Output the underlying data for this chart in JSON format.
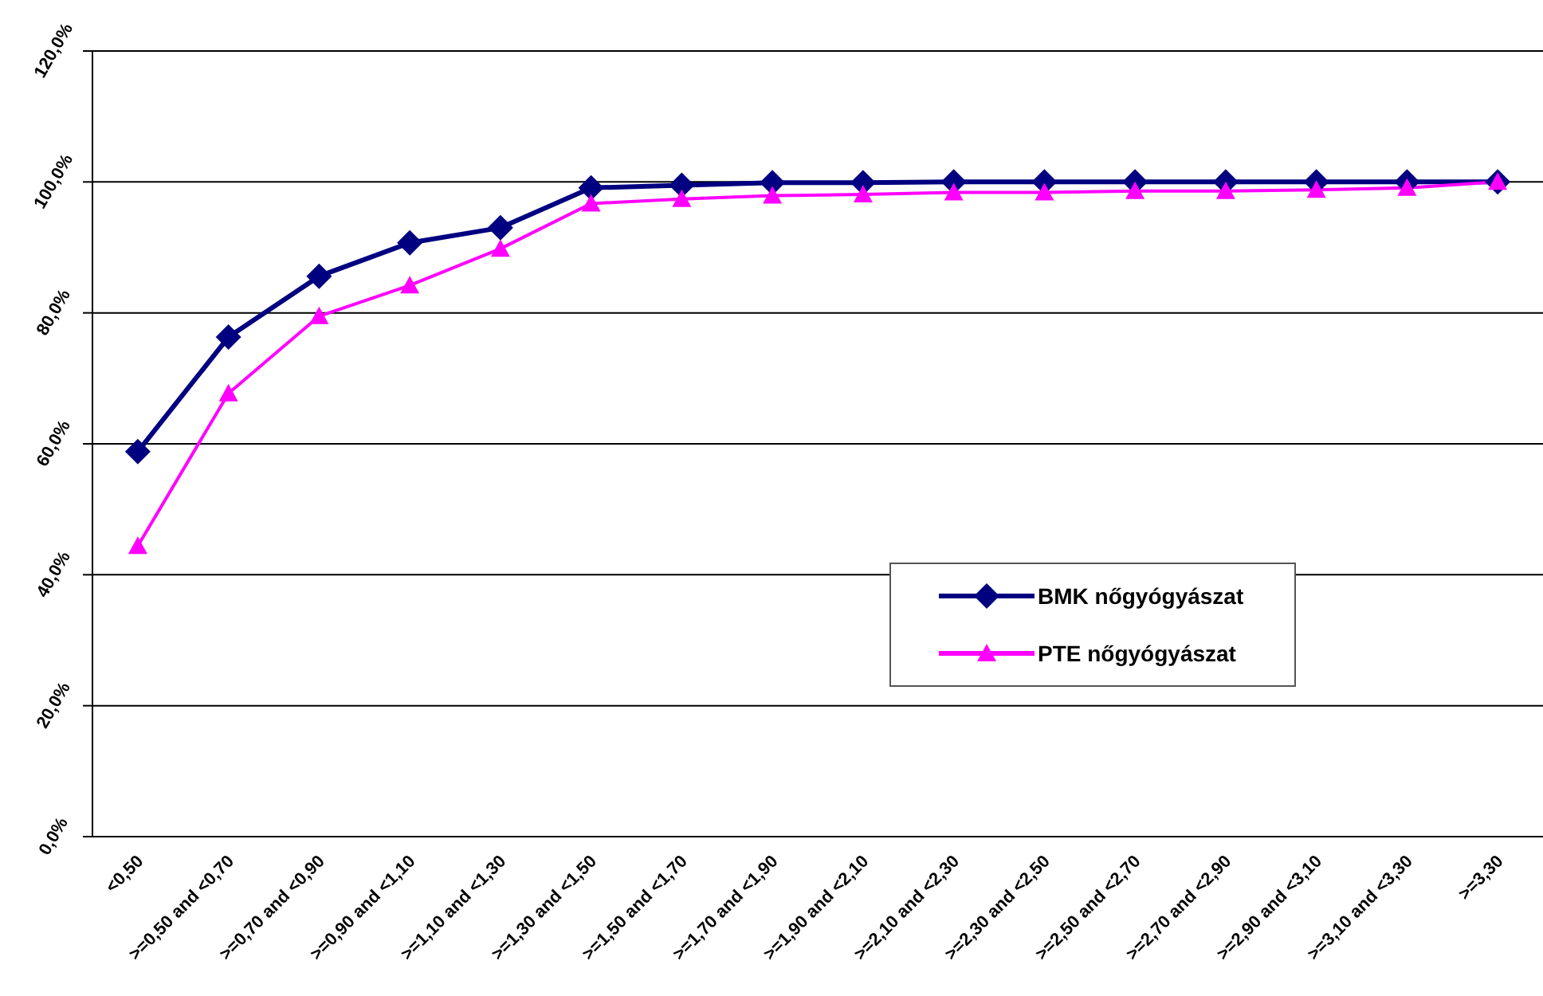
{
  "chart_data": {
    "type": "line",
    "categories": [
      "<0,50",
      ">=0,50 and <0,70",
      ">=0,70 and <0,90",
      ">=0,90 and <1,10",
      ">=1,10 and <1,30",
      ">=1,30 and <1,50",
      ">=1,50 and <1,70",
      ">=1,70 and <1,90",
      ">=1,90 and <2,10",
      ">=2,10 and <2,30",
      ">=2,30 and <2,50",
      ">=2,50 and <2,70",
      ">=2,70 and <2,90",
      ">=2,90 and <3,10",
      ">=3,10 and <3,30",
      ">=3,30"
    ],
    "series": [
      {
        "name": "BMK nőgyógyászat",
        "color": "#000080",
        "marker": "diamond",
        "values": [
          58.8,
          76.3,
          85.6,
          90.7,
          93.0,
          99.1,
          99.5,
          99.9,
          99.9,
          100,
          100,
          100,
          100,
          100,
          100,
          100
        ]
      },
      {
        "name": "PTE nőgyógyászat",
        "color": "#ff00ff",
        "marker": "triangle",
        "values": [
          44.4,
          67.7,
          79.5,
          84.2,
          89.8,
          96.7,
          97.4,
          97.9,
          98.1,
          98.4,
          98.4,
          98.6,
          98.6,
          98.8,
          99.1,
          100
        ]
      }
    ],
    "ylim": [
      0,
      120
    ],
    "yticks": [
      {
        "value": 0,
        "label": "0,0%"
      },
      {
        "value": 20,
        "label": "20,0%"
      },
      {
        "value": 40,
        "label": "40,0%"
      },
      {
        "value": 60,
        "label": "60,0%"
      },
      {
        "value": 80,
        "label": "80,0%"
      },
      {
        "value": 100,
        "label": "100,0%"
      },
      {
        "value": 120,
        "label": "120,0%"
      }
    ],
    "grid": "y",
    "legend": "right",
    "line_style": "solid"
  }
}
